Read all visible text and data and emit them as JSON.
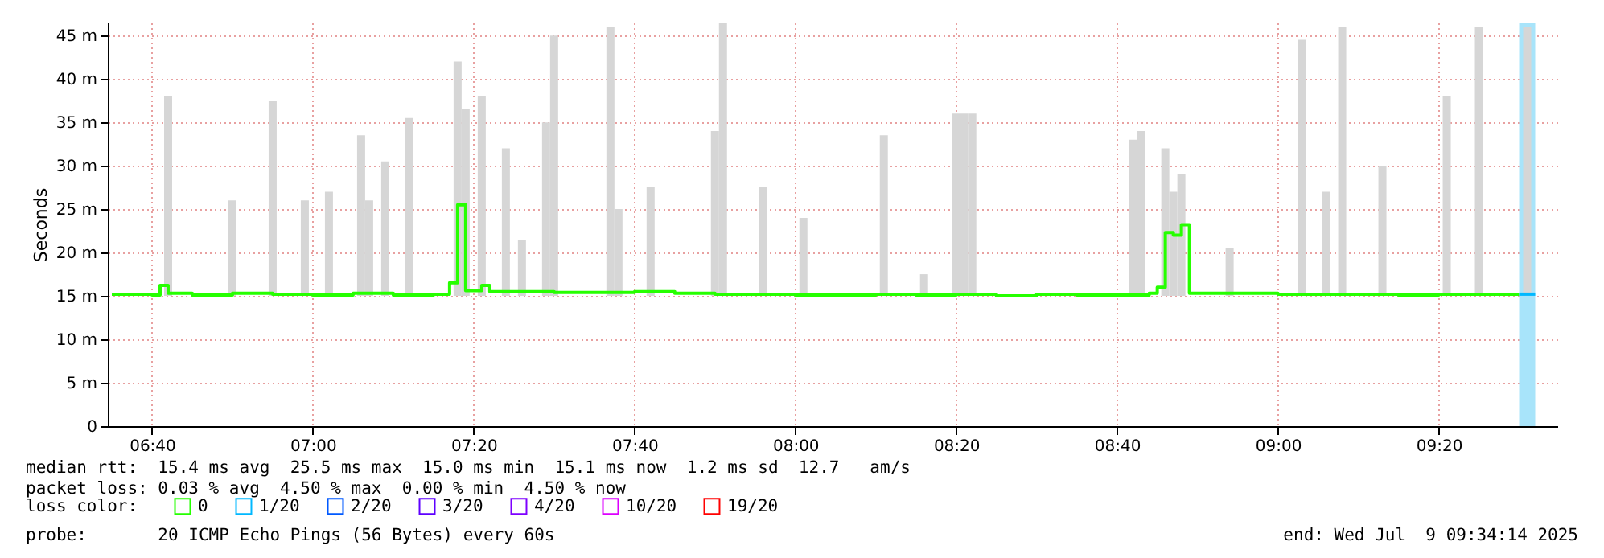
{
  "chart_data": {
    "type": "step",
    "ylabel": "Seconds",
    "legend_title": "loss color:",
    "legend": "bottom",
    "grid": true,
    "xlim": [
      "2025-07-09T06:34:30",
      "2025-07-09T09:34:45"
    ],
    "xticks": [
      {
        "value": "2025-07-09T06:40",
        "label": "06:40"
      },
      {
        "value": "2025-07-09T07:00",
        "label": "07:00"
      },
      {
        "value": "2025-07-09T07:20",
        "label": "07:20"
      },
      {
        "value": "2025-07-09T07:40",
        "label": "07:40"
      },
      {
        "value": "2025-07-09T08:00",
        "label": "08:00"
      },
      {
        "value": "2025-07-09T08:20",
        "label": "08:20"
      },
      {
        "value": "2025-07-09T08:40",
        "label": "08:40"
      },
      {
        "value": "2025-07-09T09:00",
        "label": "09:00"
      },
      {
        "value": "2025-07-09T09:20",
        "label": "09:20"
      }
    ],
    "ylim": [
      0,
      46.5
    ],
    "yticks": [
      0,
      {
        "value": 5,
        "label": "5 m"
      },
      {
        "value": 10,
        "label": "10 m"
      },
      {
        "value": 15,
        "label": "15 m"
      },
      {
        "value": 20,
        "label": "20 m"
      },
      {
        "value": 25,
        "label": "25 m"
      },
      {
        "value": 30,
        "label": "30 m"
      },
      {
        "value": 35,
        "label": "35 m"
      },
      {
        "value": 40,
        "label": "40 m"
      },
      {
        "value": 45,
        "label": "45 m"
      }
    ],
    "bands": [
      {
        "axis": "x",
        "from": "2025-07-09T09:30",
        "to": "2025-07-09T09:32",
        "color": "#a8e4fa"
      }
    ],
    "series": [
      {
        "type": "bar",
        "color": "#d6d6d6",
        "x": [
          "2025-07-09T06:42",
          "2025-07-09T06:50",
          "2025-07-09T06:55",
          "2025-07-09T06:59",
          "2025-07-09T07:02",
          "2025-07-09T07:06",
          "2025-07-09T07:07",
          "2025-07-09T07:09",
          "2025-07-09T07:12",
          "2025-07-09T07:18",
          "2025-07-09T07:19",
          "2025-07-09T07:21",
          "2025-07-09T07:24",
          "2025-07-09T07:26",
          "2025-07-09T07:29",
          "2025-07-09T07:30",
          "2025-07-09T07:37",
          "2025-07-09T07:38",
          "2025-07-09T07:42",
          "2025-07-09T07:50",
          "2025-07-09T07:51",
          "2025-07-09T07:56",
          "2025-07-09T08:01",
          "2025-07-09T08:11",
          "2025-07-09T08:16",
          "2025-07-09T08:20",
          "2025-07-09T08:21",
          "2025-07-09T08:22",
          "2025-07-09T08:42",
          "2025-07-09T08:43",
          "2025-07-09T08:46",
          "2025-07-09T08:47",
          "2025-07-09T08:48",
          "2025-07-09T08:54",
          "2025-07-09T09:03",
          "2025-07-09T09:06",
          "2025-07-09T09:08",
          "2025-07-09T09:13",
          "2025-07-09T09:21",
          "2025-07-09T09:25",
          "2025-07-09T09:31"
        ],
        "base": [
          15,
          15,
          15,
          15,
          15,
          15,
          15,
          15,
          15,
          15,
          15,
          15,
          15,
          15,
          15,
          15,
          15,
          15,
          15,
          15,
          15,
          15,
          15,
          15,
          15,
          15,
          15,
          15,
          15,
          15,
          15,
          15,
          15,
          15,
          15,
          15,
          15,
          15,
          15,
          15,
          15
        ],
        "values": [
          23,
          11,
          22.5,
          11,
          12,
          18.5,
          11,
          15.5,
          20.5,
          27,
          21.5,
          23,
          17,
          6.5,
          20,
          30,
          31,
          10,
          12.5,
          19,
          31.5,
          12.5,
          9,
          18.5,
          2.5,
          21,
          21,
          21,
          18,
          19,
          17,
          12,
          14,
          5.5,
          29.5,
          12,
          31,
          15,
          23,
          31,
          31
        ]
      },
      {
        "name": "0",
        "color": "#26ff00",
        "x": [
          "2025-07-09T06:35",
          "2025-07-09T06:40",
          "2025-07-09T06:41",
          "2025-07-09T06:42",
          "2025-07-09T06:45",
          "2025-07-09T06:50",
          "2025-07-09T06:55",
          "2025-07-09T07:00",
          "2025-07-09T07:05",
          "2025-07-09T07:10",
          "2025-07-09T07:15",
          "2025-07-09T07:17",
          "2025-07-09T07:18",
          "2025-07-09T07:19",
          "2025-07-09T07:21",
          "2025-07-09T07:22",
          "2025-07-09T07:25",
          "2025-07-09T07:30",
          "2025-07-09T07:35",
          "2025-07-09T07:40",
          "2025-07-09T07:45",
          "2025-07-09T07:50",
          "2025-07-09T07:55",
          "2025-07-09T08:00",
          "2025-07-09T08:05",
          "2025-07-09T08:10",
          "2025-07-09T08:15",
          "2025-07-09T08:20",
          "2025-07-09T08:25",
          "2025-07-09T08:30",
          "2025-07-09T08:35",
          "2025-07-09T08:40",
          "2025-07-09T08:44",
          "2025-07-09T08:45",
          "2025-07-09T08:46",
          "2025-07-09T08:47",
          "2025-07-09T08:48",
          "2025-07-09T08:49",
          "2025-07-09T08:55",
          "2025-07-09T09:00",
          "2025-07-09T09:05",
          "2025-07-09T09:10",
          "2025-07-09T09:15",
          "2025-07-09T09:20",
          "2025-07-09T09:25",
          "2025-07-09T09:30"
        ],
        "values": [
          15.2,
          15.1,
          16.2,
          15.3,
          15.1,
          15.3,
          15.2,
          15.1,
          15.3,
          15.1,
          15.2,
          16.5,
          25.5,
          15.6,
          16.2,
          15.5,
          15.5,
          15.4,
          15.4,
          15.5,
          15.3,
          15.2,
          15.2,
          15.1,
          15.1,
          15.2,
          15.1,
          15.2,
          15.0,
          15.2,
          15.1,
          15.1,
          15.3,
          16.0,
          22.3,
          22.0,
          23.2,
          15.3,
          15.3,
          15.2,
          15.2,
          15.2,
          15.1,
          15.2,
          15.2,
          15.2
        ]
      },
      {
        "name": "1/20",
        "color": "#00b8ff",
        "x": [
          "2025-07-09T09:30",
          "2025-07-09T09:32"
        ],
        "values": [
          15.2,
          15.2
        ]
      },
      {
        "name": "2/20",
        "color": "#0059ff"
      },
      {
        "name": "3/20",
        "color": "#5e00ff"
      },
      {
        "name": "4/20",
        "color": "#7e00ff"
      },
      {
        "name": "10/20",
        "color": "#dd00ff"
      },
      {
        "name": "19/20",
        "color": "#ff0000"
      }
    ],
    "annotations": [
      "median rtt:  15.4 ms avg  25.5 ms max  15.0 ms min  15.1 ms now  1.2 ms sd  12.7   am/s",
      "packet loss: 0.03 % avg  4.50 % max  0.00 % min  4.50 % now",
      "probe:       20 ICMP Echo Pings (56 Bytes) every 60s",
      "end: Wed Jul  9 09:34:14 2025"
    ]
  }
}
